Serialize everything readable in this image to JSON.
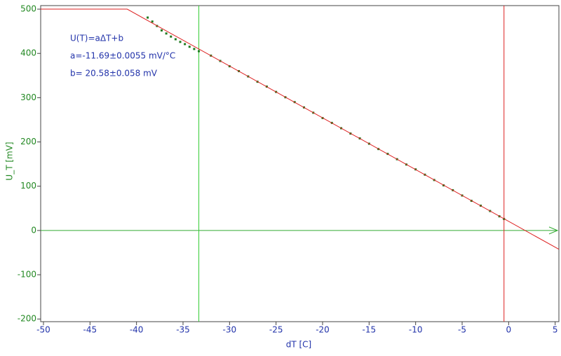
{
  "chart_data": {
    "type": "scatter",
    "xlabel": "dT [C]",
    "ylabel": "U_T [mV]",
    "annotations": [
      "U(T)=aΔT+b",
      "a=-11.69±0.0055 mV/°C",
      "b= 20.58±0.058 mV"
    ],
    "xlim": [
      -50.3,
      5.4
    ],
    "ylim": [
      -206,
      508
    ],
    "xticks": [
      -50,
      -45,
      -40,
      -35,
      -30,
      -25,
      -20,
      -15,
      -10,
      -5,
      0,
      5
    ],
    "yticks": [
      -200,
      -100,
      0,
      100,
      200,
      300,
      400,
      500
    ],
    "vlines": [
      {
        "x": -33.3,
        "color": "#33cc33"
      },
      {
        "x": -0.5,
        "color": "#dd2222"
      }
    ],
    "series": [
      {
        "style": "markers",
        "color": "#1e7a1e",
        "x": [
          -38.8,
          -38.3,
          -37.8,
          -37.3,
          -36.8,
          -36.3,
          -35.8,
          -35.3,
          -34.8,
          -34.3,
          -33.8,
          -33.3,
          -32,
          -31,
          -30,
          -29,
          -28,
          -27,
          -26,
          -25,
          -24,
          -23,
          -22,
          -21,
          -20,
          -19,
          -18,
          -17,
          -16,
          -15,
          -14,
          -13,
          -12,
          -11,
          -10,
          -9,
          -8,
          -7,
          -6,
          -5,
          -4,
          -3,
          -2,
          -1,
          -0.5
        ],
        "values": [
          481,
          472,
          462,
          452,
          445,
          438,
          432,
          426,
          421,
          415,
          410,
          405,
          395,
          383,
          371,
          360,
          348,
          336,
          325,
          313,
          301,
          290,
          278,
          266,
          254,
          243,
          231,
          219,
          208,
          196,
          184,
          173,
          161,
          149,
          138,
          126,
          114,
          102,
          91,
          79,
          67,
          56,
          44,
          32,
          26
        ]
      },
      {
        "style": "line",
        "color": "#dd2222",
        "x": [
          -50.3,
          -41,
          5.4
        ],
        "values": [
          500,
          500,
          -42.5
        ]
      }
    ]
  }
}
